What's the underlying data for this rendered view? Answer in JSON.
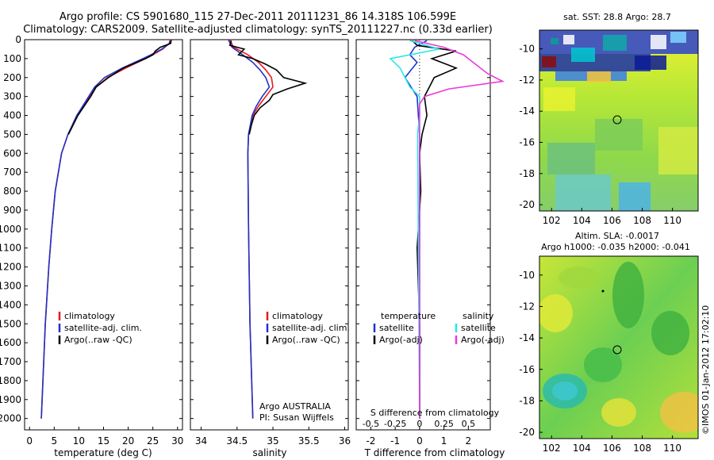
{
  "title_line1": "Argo profile: CS 5901680_115 27-Dec-2011 20111231_86 14.318S 106.599E",
  "title_line2": "Climatology: CARS2009. Satellite-adjusted climatology: synTS_20111227.nc (0.33d earlier)",
  "depth_ticks": [
    "0",
    "100",
    "200",
    "300",
    "400",
    "500",
    "600",
    "700",
    "800",
    "900",
    "1000",
    "1100",
    "1200",
    "1300",
    "1400",
    "1500",
    "1600",
    "1700",
    "1800",
    "1900",
    "2000"
  ],
  "colors": {
    "climatology": "#e8191e",
    "satellite": "#1f33c9",
    "argo": "#000000",
    "satellite_salinity": "#27e6ea",
    "argo_salinity": "#e93bd9"
  },
  "chart_data": [
    {
      "type": "line",
      "xlabel": "temperature (deg C)",
      "ylim": [
        2060,
        0
      ],
      "xlim": [
        -1,
        31
      ],
      "xticks": [
        "0",
        "5",
        "10",
        "15",
        "20",
        "25",
        "30"
      ],
      "legend": [
        "climatology",
        "satellite-adj. clim.",
        "Argo(..raw -QC)"
      ],
      "series": [
        {
          "name": "climatology",
          "depth": [
            0,
            20,
            50,
            80,
            100,
            150,
            200,
            250,
            300,
            400,
            500,
            600,
            800,
            1000,
            1200,
            1500,
            2000
          ],
          "values": [
            28.5,
            28.3,
            27,
            25,
            23.5,
            19.5,
            15.8,
            13.5,
            12.2,
            9.6,
            7.8,
            6.5,
            5.2,
            4.5,
            3.9,
            3.2,
            2.4
          ]
        },
        {
          "name": "satellite-adj. clim.",
          "depth": [
            0,
            20,
            50,
            80,
            100,
            150,
            200,
            250,
            300,
            400,
            500,
            600,
            800,
            1000,
            1200,
            1500,
            2000
          ],
          "values": [
            28.8,
            28.4,
            26.8,
            24.6,
            23,
            18.8,
            15.2,
            13.2,
            12,
            9.6,
            7.8,
            6.5,
            5.2,
            4.5,
            3.9,
            3.2,
            2.4
          ]
        },
        {
          "name": "Argo(..raw -QC)",
          "depth": [
            5,
            20,
            40,
            60,
            80,
            100,
            150,
            200,
            250,
            300,
            400,
            500
          ],
          "values": [
            28.7,
            28.6,
            26.5,
            25.5,
            25,
            23.5,
            19,
            16,
            13.5,
            12.4,
            9.8,
            7.9
          ]
        }
      ]
    },
    {
      "type": "line",
      "xlabel": "salinity",
      "ylim": [
        2060,
        0
      ],
      "xlim": [
        33.85,
        36.05
      ],
      "xticks": [
        "34",
        "34.5",
        "35",
        "35.5",
        "36"
      ],
      "legend": [
        "climatology",
        "satellite-adj. clim.",
        "Argo(..raw -QC)"
      ],
      "annotation": [
        "Argo AUSTRALIA",
        "PI: Susan Wijffels"
      ],
      "series": [
        {
          "name": "climatology",
          "depth": [
            0,
            40,
            80,
            120,
            160,
            200,
            250,
            300,
            350,
            400,
            500,
            600,
            1000,
            1500,
            2000
          ],
          "values": [
            34.4,
            34.45,
            34.65,
            34.8,
            34.9,
            34.98,
            35.0,
            34.9,
            34.8,
            34.72,
            34.66,
            34.65,
            34.66,
            34.68,
            34.72
          ]
        },
        {
          "name": "satellite-adj. clim.",
          "depth": [
            0,
            40,
            80,
            120,
            160,
            200,
            250,
            300,
            350,
            400,
            500,
            600,
            1000,
            1500,
            2000
          ],
          "values": [
            34.38,
            34.43,
            34.58,
            34.72,
            34.82,
            34.9,
            34.95,
            34.85,
            34.77,
            34.71,
            34.66,
            34.65,
            34.66,
            34.68,
            34.72
          ]
        },
        {
          "name": "Argo(..raw -QC)",
          "depth": [
            5,
            30,
            50,
            80,
            100,
            130,
            160,
            200,
            230,
            260,
            290,
            320,
            360,
            400,
            450,
            500
          ],
          "values": [
            34.42,
            34.4,
            34.6,
            34.52,
            34.72,
            34.9,
            35.05,
            35.15,
            35.45,
            35.2,
            35.0,
            34.95,
            34.82,
            34.74,
            34.7,
            34.67
          ]
        }
      ]
    },
    {
      "type": "line",
      "xlabel": "T difference from climatology",
      "xlabel2": "S difference from climatology",
      "ylim": [
        2060,
        0
      ],
      "xlim": [
        -2.6,
        2.9
      ],
      "xticks": [
        "-2",
        "-1",
        "0",
        "1",
        "2"
      ],
      "xticks2": [
        "-0.5",
        "-0.25",
        "0",
        "0.25",
        "0.5"
      ],
      "legend_groups": [
        "temperature",
        "salinity"
      ],
      "legend": [
        "satellite",
        "Argo(-adj)",
        "satellite",
        "Argo(-adj)"
      ],
      "series": [
        {
          "name": "temperature satellite",
          "depth": [
            5,
            40,
            80,
            120,
            200,
            300,
            500,
            1000,
            2000
          ],
          "values": [
            0.3,
            -0.2,
            -0.4,
            -0.1,
            -0.6,
            -0.1,
            0,
            0,
            0
          ]
        },
        {
          "name": "temperature Argo(-adj)",
          "depth": [
            5,
            30,
            60,
            100,
            150,
            200,
            250,
            300,
            400,
            500,
            600,
            800,
            1100,
            1500,
            2000
          ],
          "values": [
            -0.3,
            -0.1,
            1.5,
            0.5,
            1.5,
            0.6,
            0.4,
            0.2,
            0.3,
            0.1,
            0,
            0.05,
            -0.1,
            0,
            0
          ]
        },
        {
          "name": "salinity satellite",
          "depth": [
            5,
            50,
            100,
            150,
            200,
            250,
            300,
            400,
            500,
            2000
          ],
          "values": [
            -0.1,
            0.2,
            -0.3,
            -0.2,
            -0.15,
            -0.1,
            0,
            0,
            -0.02,
            0
          ]
        },
        {
          "name": "salinity Argo(-adj)",
          "depth": [
            5,
            40,
            80,
            120,
            180,
            220,
            260,
            300,
            340,
            2000
          ],
          "values": [
            -0.05,
            0.25,
            0.45,
            0.55,
            0.7,
            0.85,
            0.3,
            0.05,
            0,
            0
          ]
        }
      ]
    },
    {
      "type": "heatmap",
      "title": "sat. SST: 28.8  Argo: 28.7",
      "xticks": [
        "102",
        "104",
        "106",
        "108",
        "110"
      ],
      "yticks": [
        "-10",
        "-12",
        "-14",
        "-16",
        "-18",
        "-20"
      ]
    },
    {
      "type": "heatmap",
      "title": "Altim. SLA: -0.0017",
      "subtitle": "Argo h1000: -0.035  h2000: -0.041",
      "xticks": [
        "102",
        "104",
        "106",
        "108",
        "110"
      ],
      "yticks": [
        "-10",
        "-12",
        "-14",
        "-16",
        "-18",
        "-20"
      ]
    }
  ],
  "side_label": "©IMOS 01-Jan-2012 17:02:10"
}
